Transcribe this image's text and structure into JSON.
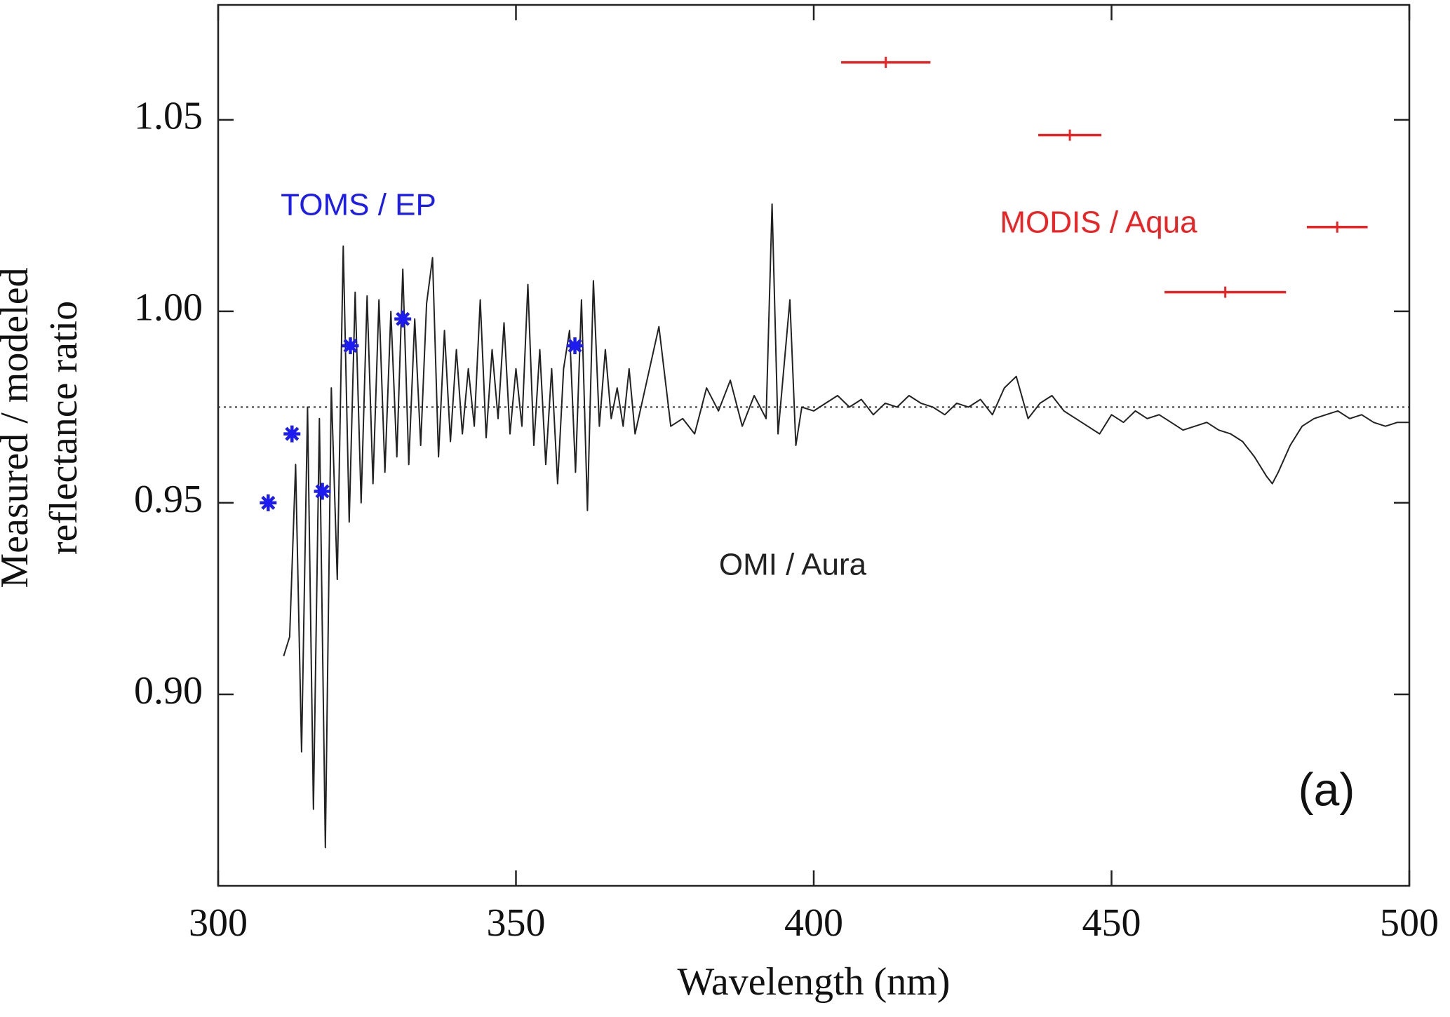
{
  "chart_data": {
    "type": "line",
    "xlabel": "Wavelength (nm)",
    "ylabel": [
      "Measured / modeled",
      "reflectance ratio"
    ],
    "panel_label": "(a)",
    "xlim": [
      300,
      500
    ],
    "xticks": [
      300,
      350,
      400,
      450,
      500
    ],
    "ylim": [
      0.85,
      1.08
    ],
    "yticks": [
      {
        "value": 0.9,
        "label": "0.90"
      },
      0.95,
      {
        "value": 1,
        "label": "1.00"
      },
      1.05
    ],
    "reference_line": 0.975,
    "series": [
      {
        "name": "OMI / Aura",
        "type": "line",
        "color": "#222222",
        "x": [
          311,
          312,
          313,
          314,
          315,
          316,
          317,
          318,
          319,
          320,
          321,
          322,
          323,
          324,
          325,
          326,
          327,
          328,
          329,
          330,
          331,
          332,
          333,
          334,
          335,
          336,
          337,
          338,
          339,
          340,
          341,
          342,
          343,
          344,
          345,
          346,
          347,
          348,
          349,
          350,
          351,
          352,
          353,
          354,
          355,
          356,
          357,
          358,
          359,
          360,
          361,
          362,
          363,
          364,
          365,
          366,
          367,
          368,
          369,
          370,
          372,
          374,
          376,
          378,
          380,
          382,
          384,
          386,
          388,
          390,
          392,
          393,
          394,
          396,
          397,
          398,
          400,
          402,
          404,
          406,
          408,
          410,
          412,
          414,
          416,
          418,
          420,
          422,
          424,
          426,
          428,
          430,
          432,
          434,
          436,
          438,
          440,
          442,
          444,
          446,
          448,
          450,
          452,
          454,
          456,
          458,
          460,
          462,
          464,
          466,
          468,
          470,
          472,
          474,
          476,
          477,
          478,
          480,
          482,
          484,
          486,
          488,
          490,
          492,
          494,
          496,
          498,
          500
        ],
        "values": [
          0.91,
          0.915,
          0.96,
          0.885,
          0.975,
          0.87,
          0.972,
          0.86,
          0.98,
          0.93,
          1.017,
          0.945,
          1.005,
          0.95,
          1.004,
          0.955,
          1.003,
          0.958,
          1.0,
          0.962,
          1.011,
          0.96,
          0.998,
          0.965,
          1.002,
          1.014,
          0.962,
          0.995,
          0.966,
          0.99,
          0.968,
          0.985,
          0.97,
          1.003,
          0.967,
          0.99,
          0.972,
          0.997,
          0.968,
          0.985,
          0.97,
          1.007,
          0.965,
          0.99,
          0.96,
          0.985,
          0.955,
          0.985,
          0.995,
          0.958,
          1.003,
          0.948,
          1.008,
          0.97,
          0.99,
          0.972,
          0.98,
          0.97,
          0.985,
          0.968,
          0.982,
          0.996,
          0.97,
          0.972,
          0.968,
          0.98,
          0.974,
          0.982,
          0.97,
          0.978,
          0.972,
          1.028,
          0.968,
          1.003,
          0.965,
          0.975,
          0.974,
          0.976,
          0.978,
          0.975,
          0.977,
          0.973,
          0.976,
          0.975,
          0.978,
          0.976,
          0.975,
          0.973,
          0.976,
          0.975,
          0.977,
          0.973,
          0.98,
          0.983,
          0.972,
          0.976,
          0.978,
          0.974,
          0.972,
          0.97,
          0.968,
          0.973,
          0.971,
          0.974,
          0.972,
          0.973,
          0.971,
          0.969,
          0.97,
          0.971,
          0.969,
          0.968,
          0.966,
          0.962,
          0.957,
          0.955,
          0.958,
          0.965,
          0.97,
          0.972,
          0.973,
          0.974,
          0.972,
          0.973,
          0.971,
          0.97,
          0.971,
          0.971
        ]
      },
      {
        "name": "TOMS / EP",
        "type": "scatter",
        "color": "#1c1cf0",
        "x": [
          308.4,
          312.4,
          317.5,
          322.2,
          331.0,
          359.9
        ],
        "values": [
          0.95,
          0.968,
          0.953,
          0.991,
          0.998,
          0.991
        ]
      },
      {
        "name": "MODIS / Aqua",
        "type": "errorbar",
        "color": "#ee2222",
        "x": [
          412.1,
          443.0,
          469.1,
          487.9
        ],
        "xerr": [
          7.5,
          5.3,
          10.2,
          5.1
        ],
        "values": [
          1.065,
          1.046,
          1.005,
          1.022
        ]
      }
    ]
  }
}
